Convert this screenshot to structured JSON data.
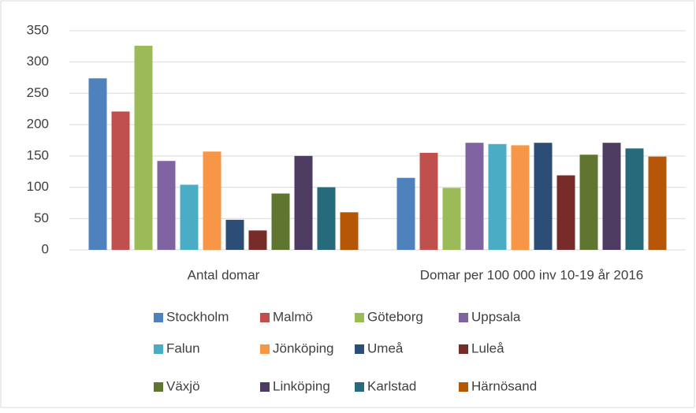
{
  "chart_data": {
    "type": "bar",
    "categories": [
      "Antal domar",
      "Domar per 100 000 inv 10-19 år 2016"
    ],
    "series": [
      {
        "name": "Stockholm",
        "color": "#4f81bd",
        "values": [
          274,
          115
        ]
      },
      {
        "name": "Malmö",
        "color": "#c0504d",
        "values": [
          221,
          155
        ]
      },
      {
        "name": "Göteborg",
        "color": "#9bbb59",
        "values": [
          326,
          99
        ]
      },
      {
        "name": "Uppsala",
        "color": "#8064a2",
        "values": [
          142,
          171
        ]
      },
      {
        "name": "Falun",
        "color": "#4bacc6",
        "values": [
          104,
          169
        ]
      },
      {
        "name": "Jönköping",
        "color": "#f79646",
        "values": [
          157,
          167
        ]
      },
      {
        "name": "Umeå",
        "color": "#2c4d75",
        "values": [
          48,
          171
        ]
      },
      {
        "name": "Luleå",
        "color": "#772c2a",
        "values": [
          31,
          119
        ]
      },
      {
        "name": "Växjö",
        "color": "#5f7530",
        "values": [
          90,
          152
        ]
      },
      {
        "name": "Linköping",
        "color": "#4d3b62",
        "values": [
          150,
          171
        ]
      },
      {
        "name": "Karlstad",
        "color": "#276a7c",
        "values": [
          100,
          162
        ]
      },
      {
        "name": "Härnösand",
        "color": "#b65708",
        "values": [
          60,
          149
        ]
      }
    ],
    "ylim": [
      0,
      350
    ],
    "yticks": [
      0,
      50,
      100,
      150,
      200,
      250,
      300,
      350
    ],
    "grid": true,
    "legend": "bottom"
  }
}
